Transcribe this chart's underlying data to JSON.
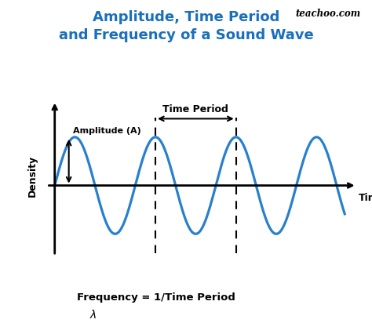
{
  "title_line1": "Amplitude, Time Period",
  "title_line2": "and Frequency of a Sound Wave",
  "title_color": "#1a6fbd",
  "title_fontsize": 13,
  "wave_color": "#2880cc",
  "wave_linewidth": 2.3,
  "background_color": "white",
  "xlabel": "Time",
  "ylabel": "Density",
  "amplitude_label": "Amplitude (A)",
  "time_period_label": "Time Period",
  "frequency_label": "Frequency = 1/Time Period",
  "teachoo_label": "teachoo.com",
  "lambda_label": "λ",
  "amplitude": 1.0,
  "period": 2.0,
  "wave_start": 0.0,
  "wave_end": 7.2,
  "dashed_x1": 2.5,
  "dashed_x2": 4.5,
  "xmin": -0.25,
  "xmax": 7.6,
  "ymin": -1.55,
  "ymax": 1.9
}
